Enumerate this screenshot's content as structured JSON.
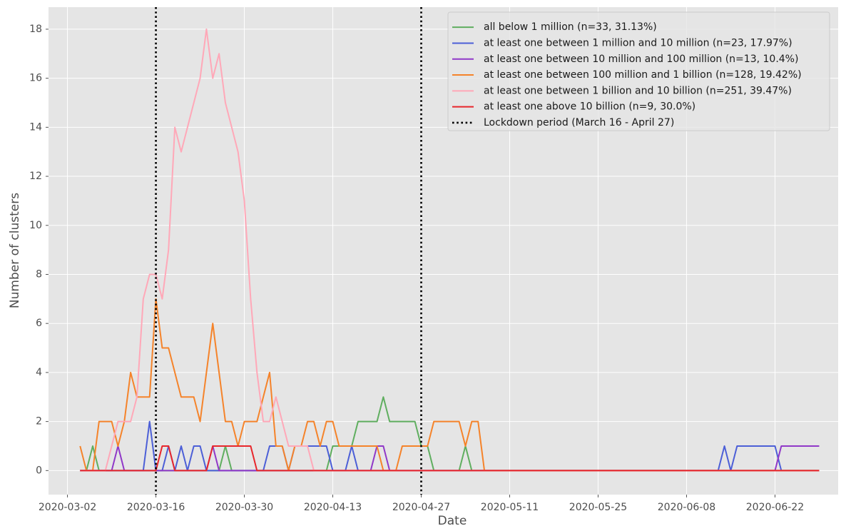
{
  "chart_data": {
    "type": "line",
    "xlabel": "Date",
    "ylabel": "Number of clusters",
    "x": [
      "2020-03-04",
      "2020-03-05",
      "2020-03-06",
      "2020-03-07",
      "2020-03-08",
      "2020-03-09",
      "2020-03-10",
      "2020-03-11",
      "2020-03-12",
      "2020-03-13",
      "2020-03-14",
      "2020-03-15",
      "2020-03-16",
      "2020-03-17",
      "2020-03-18",
      "2020-03-19",
      "2020-03-20",
      "2020-03-21",
      "2020-03-22",
      "2020-03-23",
      "2020-03-24",
      "2020-03-25",
      "2020-03-26",
      "2020-03-27",
      "2020-03-28",
      "2020-03-29",
      "2020-03-30",
      "2020-03-31",
      "2020-04-01",
      "2020-04-02",
      "2020-04-03",
      "2020-04-04",
      "2020-04-05",
      "2020-04-06",
      "2020-04-07",
      "2020-04-08",
      "2020-04-09",
      "2020-04-10",
      "2020-04-11",
      "2020-04-12",
      "2020-04-13",
      "2020-04-14",
      "2020-04-15",
      "2020-04-16",
      "2020-04-17",
      "2020-04-18",
      "2020-04-19",
      "2020-04-20",
      "2020-04-21",
      "2020-04-22",
      "2020-04-23",
      "2020-04-24",
      "2020-04-25",
      "2020-04-26",
      "2020-04-27",
      "2020-04-28",
      "2020-04-29",
      "2020-04-30",
      "2020-05-01",
      "2020-05-02",
      "2020-05-03",
      "2020-05-04",
      "2020-05-05",
      "2020-05-06",
      "2020-05-07",
      "2020-05-08",
      "2020-05-09",
      "2020-05-10",
      "2020-05-11",
      "2020-05-12",
      "2020-05-13",
      "2020-05-14",
      "2020-05-15",
      "2020-05-16",
      "2020-05-17",
      "2020-05-18",
      "2020-05-19",
      "2020-05-20",
      "2020-05-21",
      "2020-05-22",
      "2020-05-23",
      "2020-05-24",
      "2020-05-25",
      "2020-05-26",
      "2020-05-27",
      "2020-05-28",
      "2020-05-29",
      "2020-05-30",
      "2020-05-31",
      "2020-06-01",
      "2020-06-02",
      "2020-06-03",
      "2020-06-04",
      "2020-06-05",
      "2020-06-06",
      "2020-06-07",
      "2020-06-08",
      "2020-06-09",
      "2020-06-10",
      "2020-06-11",
      "2020-06-12",
      "2020-06-13",
      "2020-06-14",
      "2020-06-15",
      "2020-06-16",
      "2020-06-17",
      "2020-06-18",
      "2020-06-19",
      "2020-06-20",
      "2020-06-21",
      "2020-06-22",
      "2020-06-23",
      "2020-06-24",
      "2020-06-25",
      "2020-06-26",
      "2020-06-27",
      "2020-06-28",
      "2020-06-29"
    ],
    "series": [
      {
        "name": "all below 1 million (n=33, 31.13%)",
        "color": "#5fae5f",
        "values": [
          0,
          0,
          1,
          0,
          0,
          0,
          0,
          0,
          0,
          0,
          0,
          0,
          0,
          0,
          0,
          0,
          0,
          0,
          0,
          0,
          0,
          0,
          0,
          1,
          0,
          0,
          0,
          0,
          0,
          0,
          0,
          0,
          0,
          0,
          0,
          0,
          0,
          0,
          0,
          0,
          1,
          1,
          1,
          1,
          2,
          2,
          2,
          2,
          3,
          2,
          2,
          2,
          2,
          2,
          1,
          1,
          0,
          0,
          0,
          0,
          0,
          1,
          0,
          0,
          0,
          0,
          0,
          0,
          0,
          0,
          0,
          0,
          0,
          0,
          0,
          0,
          0,
          0,
          0,
          0,
          0,
          0,
          0,
          0,
          0,
          0,
          0,
          0,
          0,
          0,
          0,
          0,
          0,
          0,
          0,
          0,
          0,
          0,
          0,
          0,
          0,
          0,
          0,
          0,
          0,
          0,
          0,
          0,
          0,
          0,
          0,
          0,
          0,
          0,
          0,
          0,
          0,
          0
        ]
      },
      {
        "name": "at least one between 1 million and 10 million (n=23, 17.97%)",
        "color": "#4c5fd7",
        "values": [
          0,
          0,
          0,
          0,
          0,
          0,
          0,
          0,
          0,
          0,
          0,
          2,
          0,
          0,
          1,
          0,
          1,
          0,
          1,
          1,
          0,
          0,
          0,
          0,
          0,
          0,
          0,
          0,
          0,
          0,
          1,
          1,
          1,
          0,
          1,
          1,
          1,
          1,
          1,
          1,
          0,
          0,
          0,
          1,
          0,
          0,
          0,
          0,
          0,
          0,
          0,
          0,
          0,
          0,
          0,
          0,
          0,
          0,
          0,
          0,
          0,
          0,
          0,
          0,
          0,
          0,
          0,
          0,
          0,
          0,
          0,
          0,
          0,
          0,
          0,
          0,
          0,
          0,
          0,
          0,
          0,
          0,
          0,
          0,
          0,
          0,
          0,
          0,
          0,
          0,
          0,
          0,
          0,
          0,
          0,
          0,
          0,
          0,
          0,
          0,
          0,
          0,
          1,
          0,
          1,
          1,
          1,
          1,
          1,
          1,
          1,
          0,
          0,
          0,
          0,
          0,
          0,
          0
        ]
      },
      {
        "name": "at least one between 10 million and 100 million (n=13, 10.4%)",
        "color": "#9038c8",
        "values": [
          0,
          0,
          0,
          0,
          0,
          0,
          1,
          0,
          0,
          0,
          0,
          0,
          0,
          0,
          0,
          0,
          0,
          0,
          0,
          0,
          0,
          1,
          0,
          0,
          0,
          0,
          0,
          0,
          0,
          0,
          0,
          0,
          0,
          0,
          0,
          0,
          0,
          0,
          0,
          0,
          0,
          0,
          0,
          0,
          0,
          0,
          0,
          1,
          1,
          0,
          0,
          0,
          0,
          0,
          0,
          0,
          0,
          0,
          0,
          0,
          0,
          0,
          0,
          0,
          0,
          0,
          0,
          0,
          0,
          0,
          0,
          0,
          0,
          0,
          0,
          0,
          0,
          0,
          0,
          0,
          0,
          0,
          0,
          0,
          0,
          0,
          0,
          0,
          0,
          0,
          0,
          0,
          0,
          0,
          0,
          0,
          0,
          0,
          0,
          0,
          0,
          0,
          0,
          0,
          0,
          0,
          0,
          0,
          0,
          0,
          0,
          1,
          1,
          1,
          1,
          1,
          1,
          1
        ]
      },
      {
        "name": "at least one between 100 million and 1 billion (n=128, 19.42%)",
        "color": "#f5832a",
        "values": [
          1,
          0,
          0,
          2,
          2,
          2,
          1,
          2,
          4,
          3,
          3,
          3,
          7,
          5,
          5,
          4,
          3,
          3,
          3,
          2,
          4,
          6,
          4,
          2,
          2,
          1,
          2,
          2,
          2,
          3,
          4,
          1,
          1,
          0,
          1,
          1,
          2,
          2,
          1,
          2,
          2,
          1,
          1,
          1,
          1,
          1,
          1,
          1,
          0,
          0,
          0,
          1,
          1,
          1,
          1,
          1,
          2,
          2,
          2,
          2,
          2,
          1,
          2,
          2,
          0,
          0,
          0,
          0,
          0,
          0,
          0,
          0,
          0,
          0,
          0,
          0,
          0,
          0,
          0,
          0,
          0,
          0,
          0,
          0,
          0,
          0,
          0,
          0,
          0,
          0,
          0,
          0,
          0,
          0,
          0,
          0,
          0,
          0,
          0,
          0,
          0,
          0,
          0,
          0,
          0,
          0,
          0,
          0,
          0,
          0,
          0,
          0,
          0,
          0,
          0,
          0,
          0,
          0
        ]
      },
      {
        "name": "at least one between 1 billion and 10 billion (n=251, 39.47%)",
        "color": "#ffa8b8",
        "values": [
          0,
          0,
          0,
          0,
          0,
          1,
          2,
          2,
          2,
          3,
          7,
          8,
          8,
          7,
          9,
          14,
          13,
          14,
          15,
          16,
          18,
          16,
          17,
          15,
          14,
          13,
          11,
          7,
          4,
          2,
          2,
          3,
          2,
          1,
          1,
          1,
          1,
          0,
          0,
          0,
          0,
          0,
          0,
          0,
          0,
          0,
          0,
          0,
          0,
          0,
          0,
          0,
          0,
          0,
          0,
          0,
          0,
          0,
          0,
          0,
          0,
          0,
          0,
          0,
          0,
          0,
          0,
          0,
          0,
          0,
          0,
          0,
          0,
          0,
          0,
          0,
          0,
          0,
          0,
          0,
          0,
          0,
          0,
          0,
          0,
          0,
          0,
          0,
          0,
          0,
          0,
          0,
          0,
          0,
          0,
          0,
          0,
          0,
          0,
          0,
          0,
          0,
          0,
          0,
          0,
          0,
          0,
          0,
          0,
          0,
          0,
          0,
          0,
          0,
          0,
          0,
          0,
          0
        ]
      },
      {
        "name": "at least one above 10 billion (n=9, 30.0%)",
        "color": "#e8262b",
        "values": [
          0,
          0,
          0,
          0,
          0,
          0,
          0,
          0,
          0,
          0,
          0,
          0,
          0,
          1,
          1,
          0,
          0,
          0,
          0,
          0,
          0,
          1,
          1,
          1,
          1,
          1,
          1,
          1,
          0,
          0,
          0,
          0,
          0,
          0,
          0,
          0,
          0,
          0,
          0,
          0,
          0,
          0,
          0,
          0,
          0,
          0,
          0,
          0,
          0,
          0,
          0,
          0,
          0,
          0,
          0,
          0,
          0,
          0,
          0,
          0,
          0,
          0,
          0,
          0,
          0,
          0,
          0,
          0,
          0,
          0,
          0,
          0,
          0,
          0,
          0,
          0,
          0,
          0,
          0,
          0,
          0,
          0,
          0,
          0,
          0,
          0,
          0,
          0,
          0,
          0,
          0,
          0,
          0,
          0,
          0,
          0,
          0,
          0,
          0,
          0,
          0,
          0,
          0,
          0,
          0,
          0,
          0,
          0,
          0,
          0,
          0,
          0,
          0,
          0,
          0,
          0,
          0,
          0
        ]
      }
    ],
    "vlines": {
      "name": "Lockdown period (March 16 - April 27)",
      "color": "#000000",
      "x": [
        "2020-03-16",
        "2020-04-27"
      ]
    },
    "xlim": [
      "2020-02-28",
      "2020-07-02"
    ],
    "xticks": [
      "2020-03-02",
      "2020-03-16",
      "2020-03-30",
      "2020-04-13",
      "2020-04-27",
      "2020-05-11",
      "2020-05-25",
      "2020-06-08",
      "2020-06-22"
    ],
    "ylim": [
      -0.98,
      18.9
    ],
    "yticks": [
      0,
      2,
      4,
      6,
      8,
      10,
      12,
      14,
      16,
      18
    ],
    "grid": true,
    "legend": "upper right"
  }
}
